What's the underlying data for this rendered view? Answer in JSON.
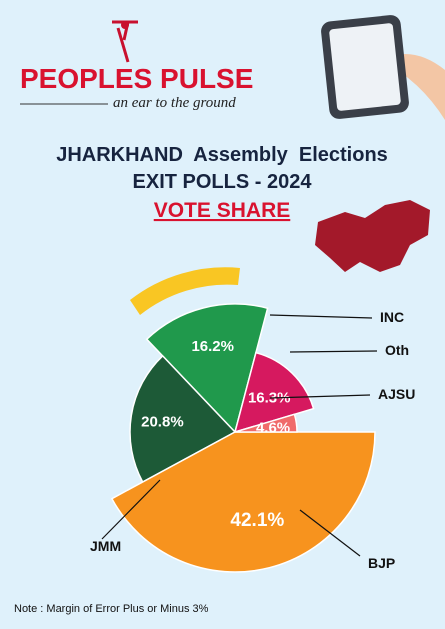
{
  "brand": "PEOPLES PULSE",
  "tagline": "an ear to the ground",
  "note": "Note : Margin of Error Plus or Minus 3%",
  "chart_data": {
    "type": "pie",
    "title": "JHARKHAND  Assembly  Elections",
    "subtitle": "EXIT POLLS - 2024",
    "annotations": [
      "VOTE SHARE"
    ],
    "categories": [
      "BJP",
      "JMM",
      "INC",
      "Oth",
      "AJSU"
    ],
    "values": [
      42.1,
      20.8,
      16.2,
      16.3,
      4.6
    ],
    "value_labels": [
      "42.1%",
      "20.8%",
      "16.2%",
      "16.3%",
      "4.6%"
    ],
    "colors": [
      "#f7931e",
      "#1d5a37",
      "#20994c",
      "#d6195f",
      "#f06b6b"
    ]
  }
}
